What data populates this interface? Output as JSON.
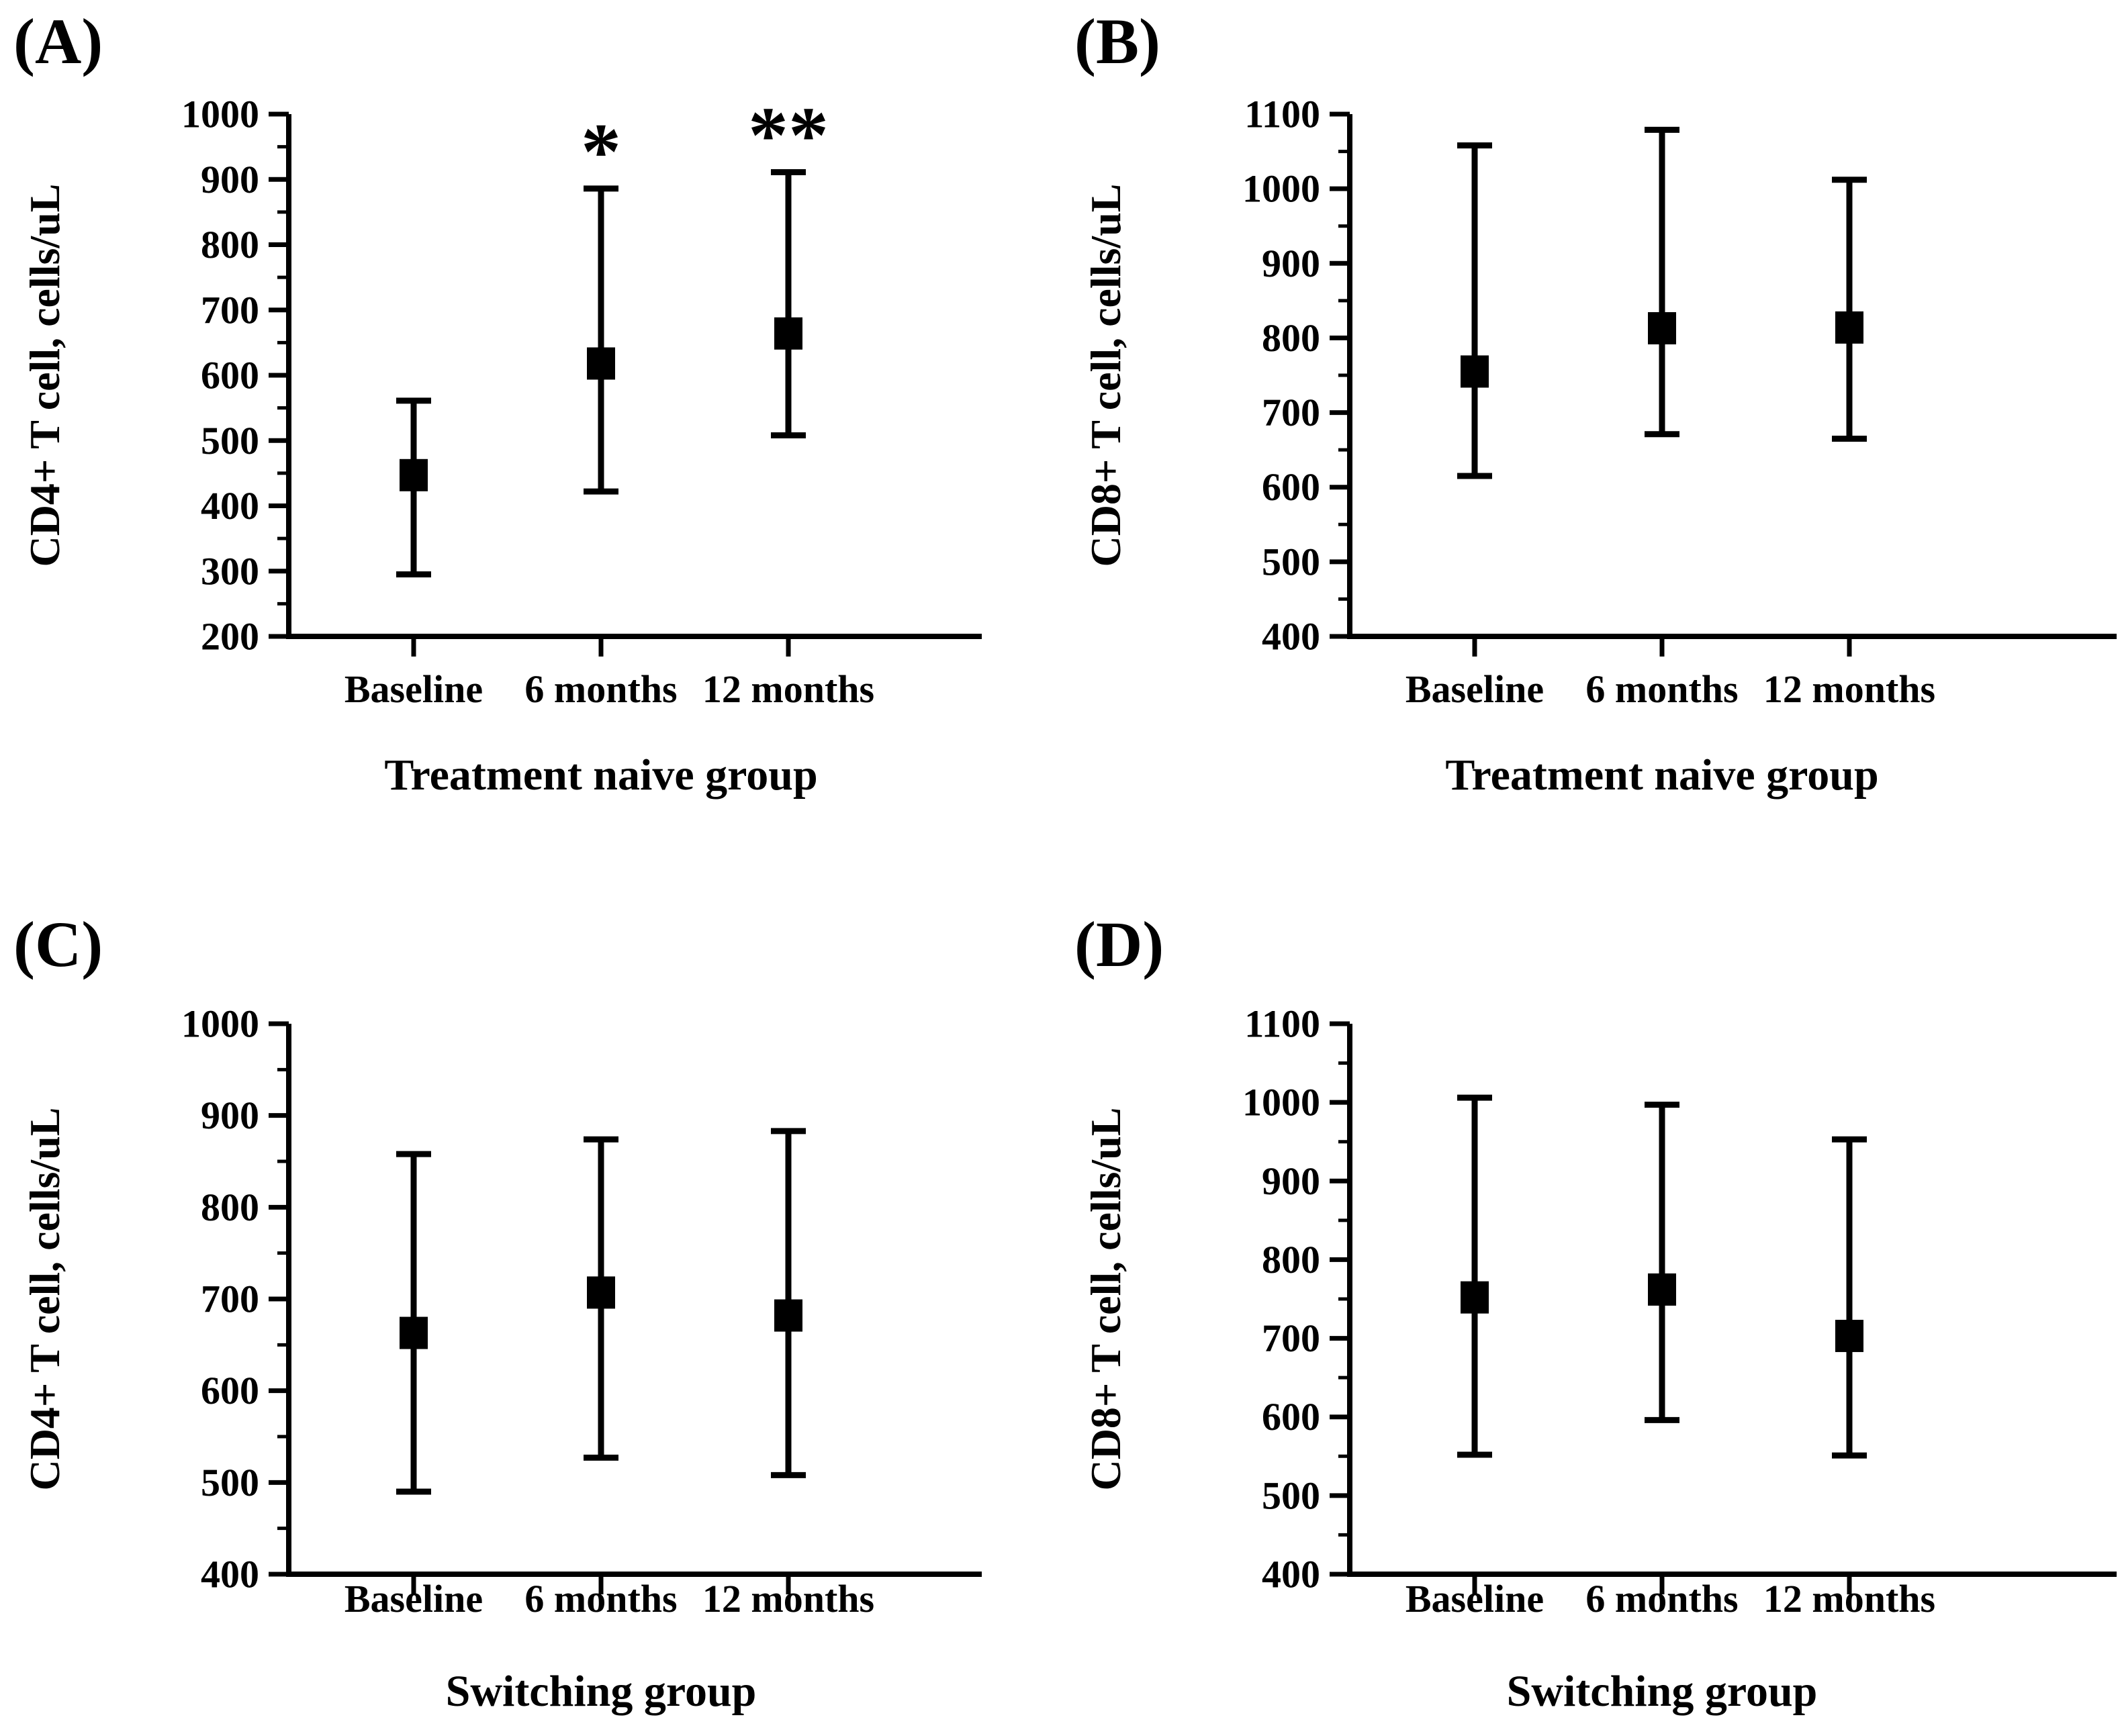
{
  "figure": {
    "background_color": "#ffffff",
    "ink_color": "#000000",
    "layout": "2x2 panel grid"
  },
  "chart_data": [
    {
      "type": "scatter",
      "subtype": "mean-with-error-bars",
      "panel_letter": "(A)",
      "ylabel": "CD4+ T cell, cells/uL",
      "xlabel": "",
      "group_label": "Treatment naive group",
      "categories": [
        "Baseline",
        "6 months",
        "12 months"
      ],
      "ylim": [
        200,
        1000
      ],
      "ytick_step": 100,
      "yminor_step": 50,
      "grid": false,
      "legend": "none",
      "marker": "filled-square",
      "color": "#000000",
      "points": [
        {
          "category": "Baseline",
          "mean": 447,
          "lower": 295,
          "upper": 561,
          "annotation": ""
        },
        {
          "category": "6 months",
          "mean": 618,
          "lower": 422,
          "upper": 886,
          "annotation": "*"
        },
        {
          "category": "12 months",
          "mean": 664,
          "lower": 508,
          "upper": 911,
          "annotation": "**"
        }
      ]
    },
    {
      "type": "scatter",
      "subtype": "mean-with-error-bars",
      "panel_letter": "(B)",
      "ylabel": "CD8+ T cell, cells/uL",
      "xlabel": "",
      "group_label": "Treatment naive group",
      "categories": [
        "Baseline",
        "6 months",
        "12 months"
      ],
      "ylim": [
        400,
        1100
      ],
      "ytick_step": 100,
      "yminor_step": 50,
      "grid": false,
      "legend": "none",
      "marker": "filled-square",
      "color": "#000000",
      "points": [
        {
          "category": "Baseline",
          "mean": 755,
          "lower": 615,
          "upper": 1058,
          "annotation": ""
        },
        {
          "category": "6 months",
          "mean": 813,
          "lower": 671,
          "upper": 1079,
          "annotation": ""
        },
        {
          "category": "12 months",
          "mean": 814,
          "lower": 665,
          "upper": 1012,
          "annotation": ""
        }
      ]
    },
    {
      "type": "scatter",
      "subtype": "mean-with-error-bars",
      "panel_letter": "(C)",
      "ylabel": "CD4+ T cell, cells/uL",
      "xlabel": "",
      "group_label": "Switching group",
      "categories": [
        "Baseline",
        "6 months",
        "12 months"
      ],
      "ylim": [
        400,
        1000
      ],
      "ytick_step": 100,
      "yminor_step": 50,
      "grid": false,
      "legend": "none",
      "marker": "filled-square",
      "color": "#000000",
      "points": [
        {
          "category": "Baseline",
          "mean": 663,
          "lower": 490,
          "upper": 858,
          "annotation": ""
        },
        {
          "category": "6 months",
          "mean": 707,
          "lower": 527,
          "upper": 874,
          "annotation": ""
        },
        {
          "category": "12 months",
          "mean": 682,
          "lower": 508,
          "upper": 883,
          "annotation": ""
        }
      ]
    },
    {
      "type": "scatter",
      "subtype": "mean-with-error-bars",
      "panel_letter": "(D)",
      "ylabel": "CD8+ T cell, cells/uL",
      "xlabel": "",
      "group_label": "Switching group",
      "categories": [
        "Baseline",
        "6 months",
        "12 months"
      ],
      "ylim": [
        400,
        1100
      ],
      "ytick_step": 100,
      "yminor_step": 50,
      "grid": false,
      "legend": "none",
      "marker": "filled-square",
      "color": "#000000",
      "points": [
        {
          "category": "Baseline",
          "mean": 752,
          "lower": 552,
          "upper": 1006,
          "annotation": ""
        },
        {
          "category": "6 months",
          "mean": 762,
          "lower": 596,
          "upper": 997,
          "annotation": ""
        },
        {
          "category": "12 months",
          "mean": 703,
          "lower": 551,
          "upper": 953,
          "annotation": ""
        }
      ]
    }
  ]
}
